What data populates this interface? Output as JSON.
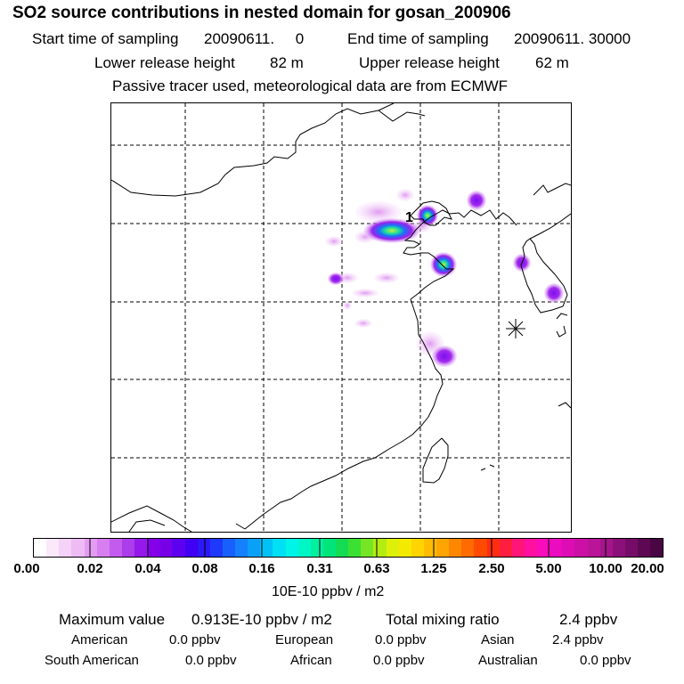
{
  "header": {
    "title": "SO2 source contributions in nested domain for gosan_200906",
    "start_label": "Start time of sampling",
    "start_value": "20090611.     0",
    "end_label": "End time of sampling",
    "end_value": "20090611. 30000",
    "lower_label": "Lower release height",
    "lower_value": "82 m",
    "upper_label": "Upper release height",
    "upper_value": "62 m",
    "note": "Passive tracer used, meteorological data are from ECMWF"
  },
  "map": {
    "marker_label": "1",
    "receptor_symbol": "*"
  },
  "colorbar": {
    "ticks": [
      "0.00",
      "0.02",
      "0.04",
      "0.08",
      "0.16",
      "0.31",
      "0.63",
      "1.25",
      "2.50",
      "5.00",
      "10.00",
      "20.00"
    ],
    "unit": "10E-10 ppbv / m2",
    "colors": [
      "#ffffff",
      "#fbe8fb",
      "#f5d2f7",
      "#eebbf5",
      "#e49cf3",
      "#d77ef1",
      "#c35cee",
      "#ac3cec",
      "#9419ea",
      "#8500e8",
      "#7700e8",
      "#5d00f0",
      "#4100f4",
      "#2d18f7",
      "#1f39fa",
      "#1860fb",
      "#1480fb",
      "#0aa0f8",
      "#00c2f7",
      "#00e0f5",
      "#00f5e8",
      "#00f6c5",
      "#00f0a0",
      "#00e57a",
      "#14dc52",
      "#3be033",
      "#75e524",
      "#b3ec12",
      "#def00a",
      "#f4ea00",
      "#ffd400",
      "#ffbc00",
      "#ffa500",
      "#ff8700",
      "#ff6b00",
      "#ff4a00",
      "#ff2e10",
      "#ff1e40",
      "#ff1478",
      "#ff10a0",
      "#f80cbc",
      "#ec0cc0",
      "#de0cb4",
      "#cc10a6",
      "#ba1498",
      "#a4148a",
      "#8c107a",
      "#760c68",
      "#5e0854",
      "#4a0642"
    ]
  },
  "stats": {
    "max_label": "Maximum value",
    "max_value": "0.913E-10 ppbv / m2",
    "total_label": "Total mixing ratio",
    "total_value": "2.4 ppbv",
    "regions": [
      {
        "name": "American",
        "value": "0.0 ppbv"
      },
      {
        "name": "European",
        "value": "0.0 ppbv"
      },
      {
        "name": "Asian",
        "value": "2.4 ppbv"
      },
      {
        "name": "South American",
        "value": "0.0 ppbv"
      },
      {
        "name": "African",
        "value": "0.0 ppbv"
      },
      {
        "name": "Australian",
        "value": "0.0 ppbv"
      }
    ]
  }
}
